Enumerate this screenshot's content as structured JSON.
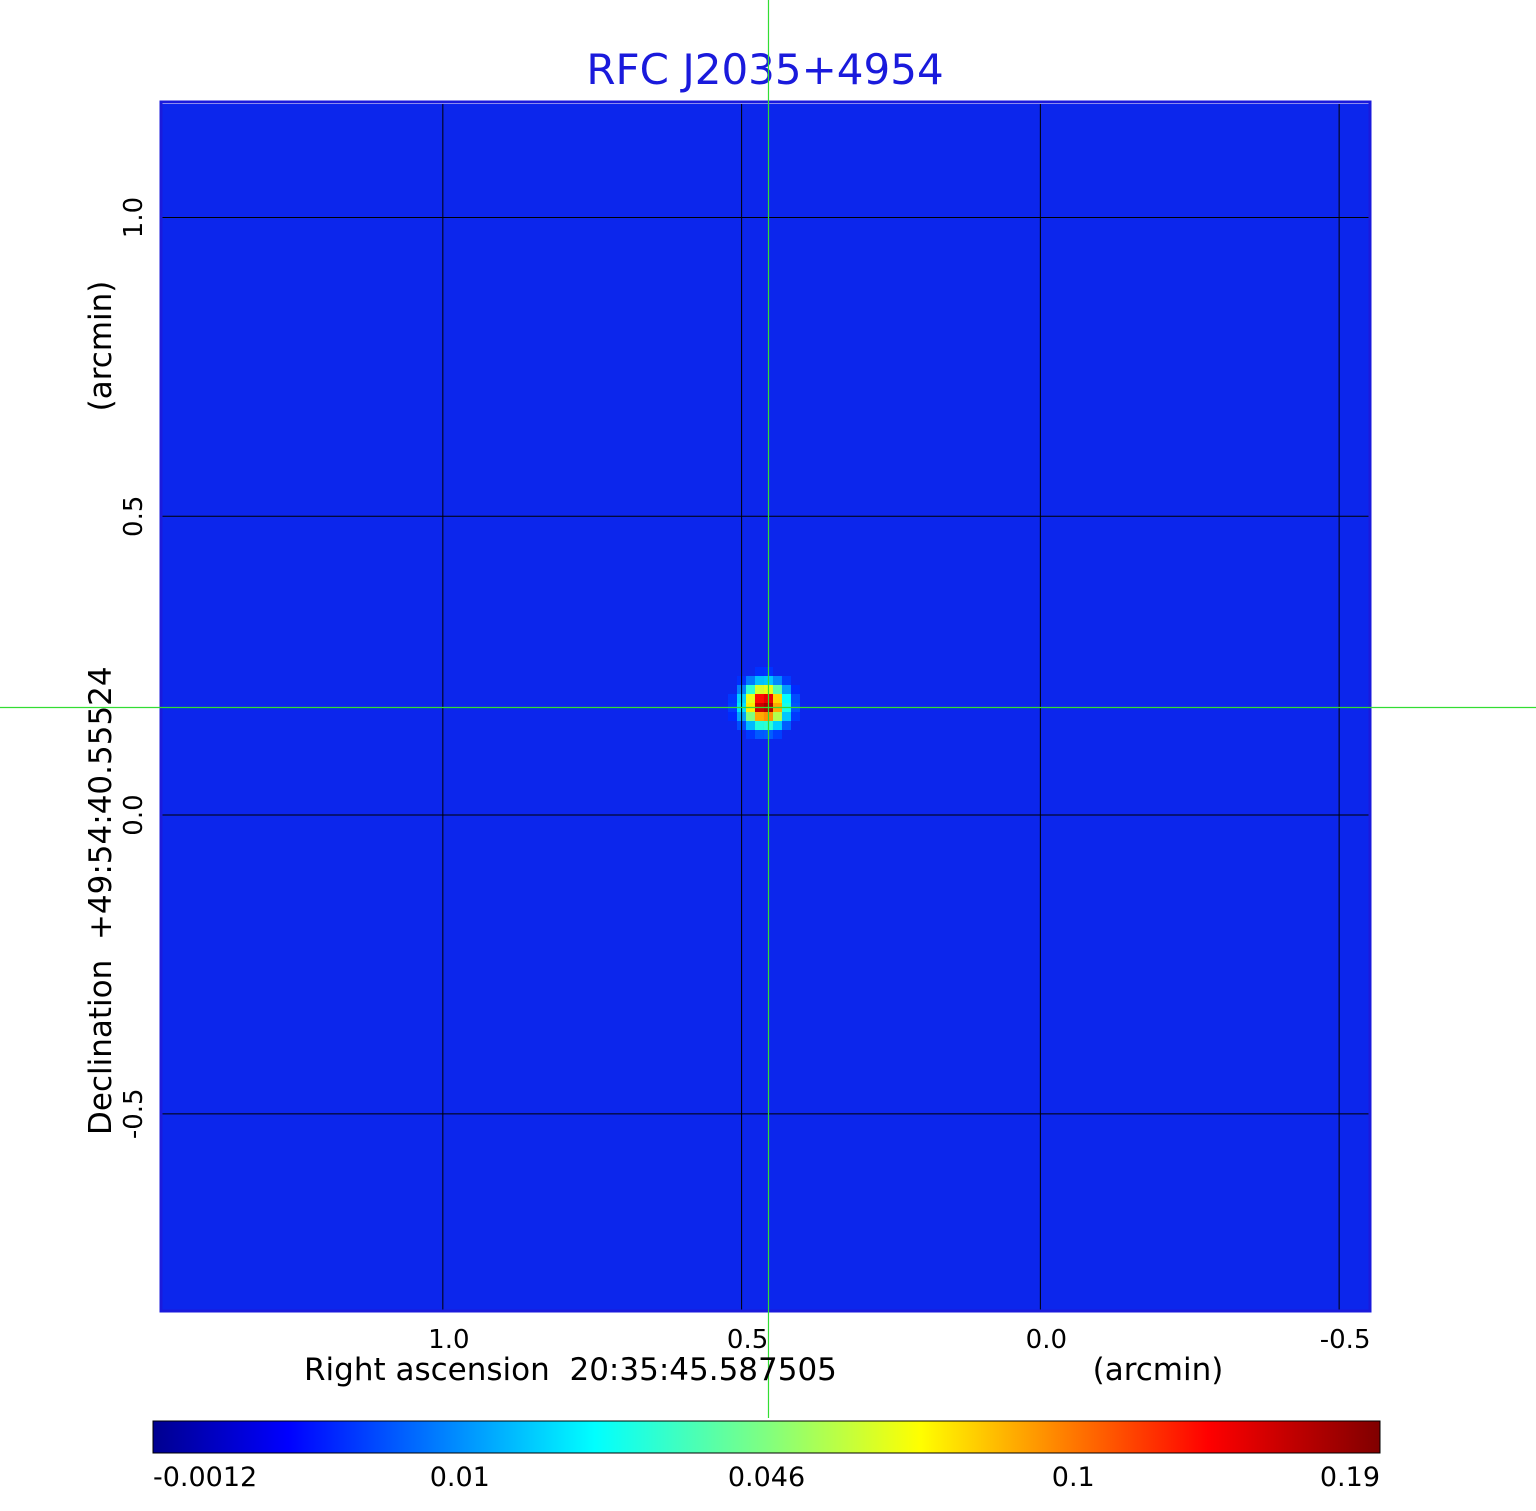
{
  "chart_data": {
    "type": "heatmap",
    "title": "RFC J2035+4954",
    "xlabel": "Right ascension  20:35:45.587505",
    "xlabel_unit": "(arcmin)",
    "ylabel": "Declination  +49:54:40.55524",
    "ylabel_unit": "(arcmin)",
    "x_range": [
      1.47,
      -0.55
    ],
    "y_range": [
      -0.83,
      1.19
    ],
    "x_ticks": [
      {
        "value": 1.0,
        "label": "1.0"
      },
      {
        "value": 0.5,
        "label": "0.5"
      },
      {
        "value": 0.0,
        "label": "0.0"
      },
      {
        "value": -0.5,
        "label": "-0.5"
      }
    ],
    "y_ticks": [
      {
        "value": 1.0,
        "label": "1.0"
      },
      {
        "value": 0.5,
        "label": "0.5"
      },
      {
        "value": 0.0,
        "label": "0.0"
      },
      {
        "value": -0.5,
        "label": "-0.5"
      }
    ],
    "grid": true,
    "crosshair": {
      "x": 0.455,
      "y": 0.18,
      "color": "#33dd33"
    },
    "source": {
      "x": 0.455,
      "y": 0.18,
      "peak": 0.19
    },
    "background_level": -0.0012,
    "colorbar": {
      "colormap": "jet",
      "ticks": [
        {
          "value": -0.0012,
          "label": "-0.0012"
        },
        {
          "value": 0.01,
          "label": "0.01"
        },
        {
          "value": 0.046,
          "label": "0.046"
        },
        {
          "value": 0.1,
          "label": "0.1"
        },
        {
          "value": 0.19,
          "label": "0.19"
        }
      ]
    },
    "colors": {
      "frame": "#1a1adc",
      "title": "#1a1adc",
      "grid": "#000000",
      "field": "#0c26ec"
    }
  }
}
